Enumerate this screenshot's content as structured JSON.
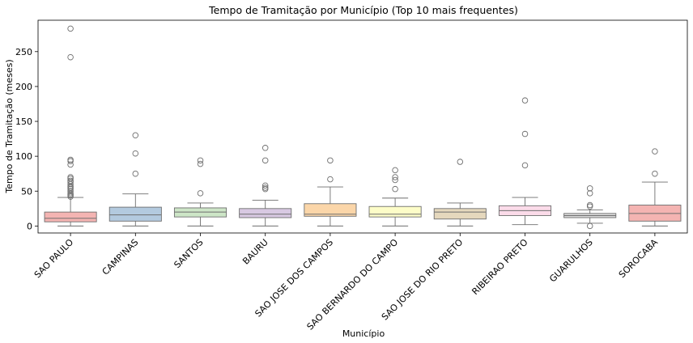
{
  "chart_data": {
    "type": "boxplot",
    "title": "Tempo de Tramitação por Município (Top 10 mais frequentes)",
    "xlabel": "Município",
    "ylabel": "Tempo de Tramitação (meses)",
    "ylim": [
      -10,
      295
    ],
    "yticks": [
      0,
      50,
      100,
      150,
      200,
      250
    ],
    "grid": false,
    "legend": "none",
    "categories": [
      "SAO PAULO",
      "CAMPINAS",
      "SANTOS",
      "BAURU",
      "SAO JOSE DOS CAMPOS",
      "SAO BERNARDO DO CAMPO",
      "SAO JOSE DO RIO PRETO",
      "RIBEIRAO PRETO",
      "GUARULHOS",
      "SOROCABA"
    ],
    "colors": [
      "#f4b4b2",
      "#b3cadf",
      "#cde6c7",
      "#d8c9e2",
      "#fbd6a9",
      "#fdfdc8",
      "#e5d8bd",
      "#fbdbe9",
      "#d8d8d8",
      "#f4b4b2"
    ],
    "boxes": [
      {
        "category": "SAO PAULO",
        "whisker_low": 0,
        "q1": 6,
        "median": 11,
        "q3": 20,
        "whisker_high": 41,
        "outliers": [
          42,
          44,
          45,
          47,
          50,
          53,
          55,
          57,
          60,
          63,
          65,
          68,
          70,
          88,
          93,
          95,
          242,
          283
        ]
      },
      {
        "category": "CAMPINAS",
        "whisker_low": 0,
        "q1": 7,
        "median": 16,
        "q3": 27,
        "whisker_high": 46,
        "outliers": [
          75,
          104,
          130
        ]
      },
      {
        "category": "SANTOS",
        "whisker_low": 0,
        "q1": 13,
        "median": 20,
        "q3": 26,
        "whisker_high": 33,
        "outliers": [
          47,
          89,
          94
        ]
      },
      {
        "category": "BAURU",
        "whisker_low": 0,
        "q1": 12,
        "median": 17,
        "q3": 25,
        "whisker_high": 37,
        "outliers": [
          53,
          55,
          58,
          94,
          112
        ]
      },
      {
        "category": "SAO JOSE DOS CAMPOS",
        "whisker_low": 0,
        "q1": 14,
        "median": 17,
        "q3": 32,
        "whisker_high": 56,
        "outliers": [
          67,
          94
        ]
      },
      {
        "category": "SAO BERNARDO DO CAMPO",
        "whisker_low": 0,
        "q1": 13,
        "median": 17,
        "q3": 28,
        "whisker_high": 40,
        "outliers": [
          53,
          66,
          70,
          80
        ]
      },
      {
        "category": "SAO JOSE DO RIO PRETO",
        "whisker_low": 0,
        "q1": 10,
        "median": 20,
        "q3": 25,
        "whisker_high": 33,
        "outliers": [
          92
        ]
      },
      {
        "category": "RIBEIRAO PRETO",
        "whisker_low": 2,
        "q1": 15,
        "median": 22,
        "q3": 29,
        "whisker_high": 41,
        "outliers": [
          87,
          132,
          180
        ]
      },
      {
        "category": "GUARULHOS",
        "whisker_low": 4,
        "q1": 12,
        "median": 15,
        "q3": 18,
        "whisker_high": 23,
        "outliers": [
          0,
          28,
          30,
          47,
          54
        ]
      },
      {
        "category": "SOROCABA",
        "whisker_low": 0,
        "q1": 7,
        "median": 18,
        "q3": 30,
        "whisker_high": 63,
        "outliers": [
          75,
          107
        ]
      }
    ]
  }
}
